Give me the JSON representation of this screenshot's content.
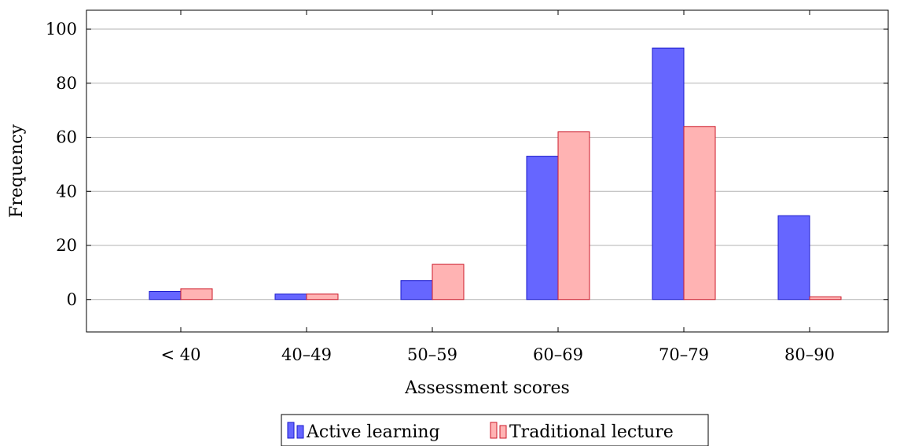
{
  "chart_data": {
    "type": "bar",
    "categories": [
      "< 40",
      "40–49",
      "50–59",
      "60–69",
      "70–79",
      "80–90"
    ],
    "series": [
      {
        "name": "Active learning",
        "values": [
          3,
          2,
          7,
          53,
          93,
          31
        ],
        "fill": "#6666ff",
        "stroke": "#1a1acc"
      },
      {
        "name": "Traditional lecture",
        "values": [
          4,
          2,
          13,
          62,
          64,
          1
        ],
        "fill": "#ffb3b3",
        "stroke": "#cc1a2a"
      }
    ],
    "xlabel": "Assessment scores",
    "ylabel": "Frequency",
    "ylim": [
      -12,
      107
    ],
    "yticks": [
      0,
      20,
      40,
      60,
      80,
      100
    ],
    "grid": "horizontal",
    "legend_position": "bottom-center"
  }
}
